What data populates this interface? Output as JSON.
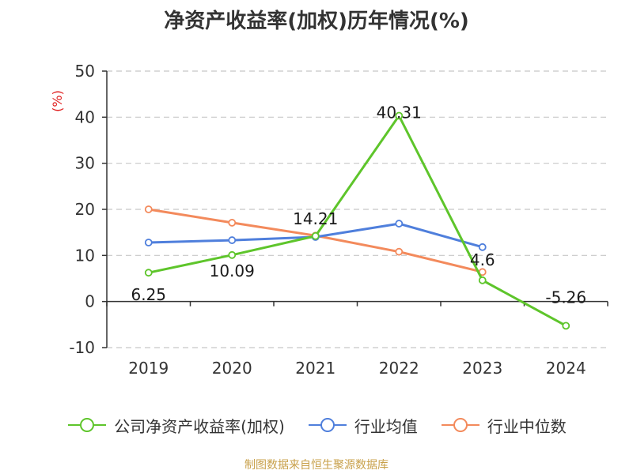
{
  "source_note": "制图数据来自恒生聚源数据库",
  "chart_data": {
    "type": "line",
    "title": "净资产收益率(加权)历年情况(%)",
    "ylabel": "(%)",
    "ylabel_color": "#e02020",
    "ylim": [
      -10,
      50
    ],
    "yticks": [
      -10,
      0,
      10,
      20,
      30,
      40,
      50
    ],
    "grid": true,
    "legend_position": "bottom",
    "categories": [
      "2019",
      "2020",
      "2021",
      "2022",
      "2023",
      "2024"
    ],
    "series": [
      {
        "name": "公司净资产收益率(加权)",
        "color": "#5ec52b",
        "values": [
          6.25,
          10.09,
          14.21,
          40.31,
          4.6,
          -5.26
        ],
        "labels": [
          "6.25",
          "10.09",
          "14.21",
          "40.31",
          "4.6",
          "-5.26"
        ]
      },
      {
        "name": "行业均值",
        "color": "#4f7fdc",
        "values": [
          12.8,
          13.3,
          14.0,
          16.9,
          11.8,
          null
        ]
      },
      {
        "name": "行业中位数",
        "color": "#f38a5c",
        "values": [
          20.0,
          17.1,
          14.3,
          10.8,
          6.4,
          null
        ]
      }
    ]
  }
}
